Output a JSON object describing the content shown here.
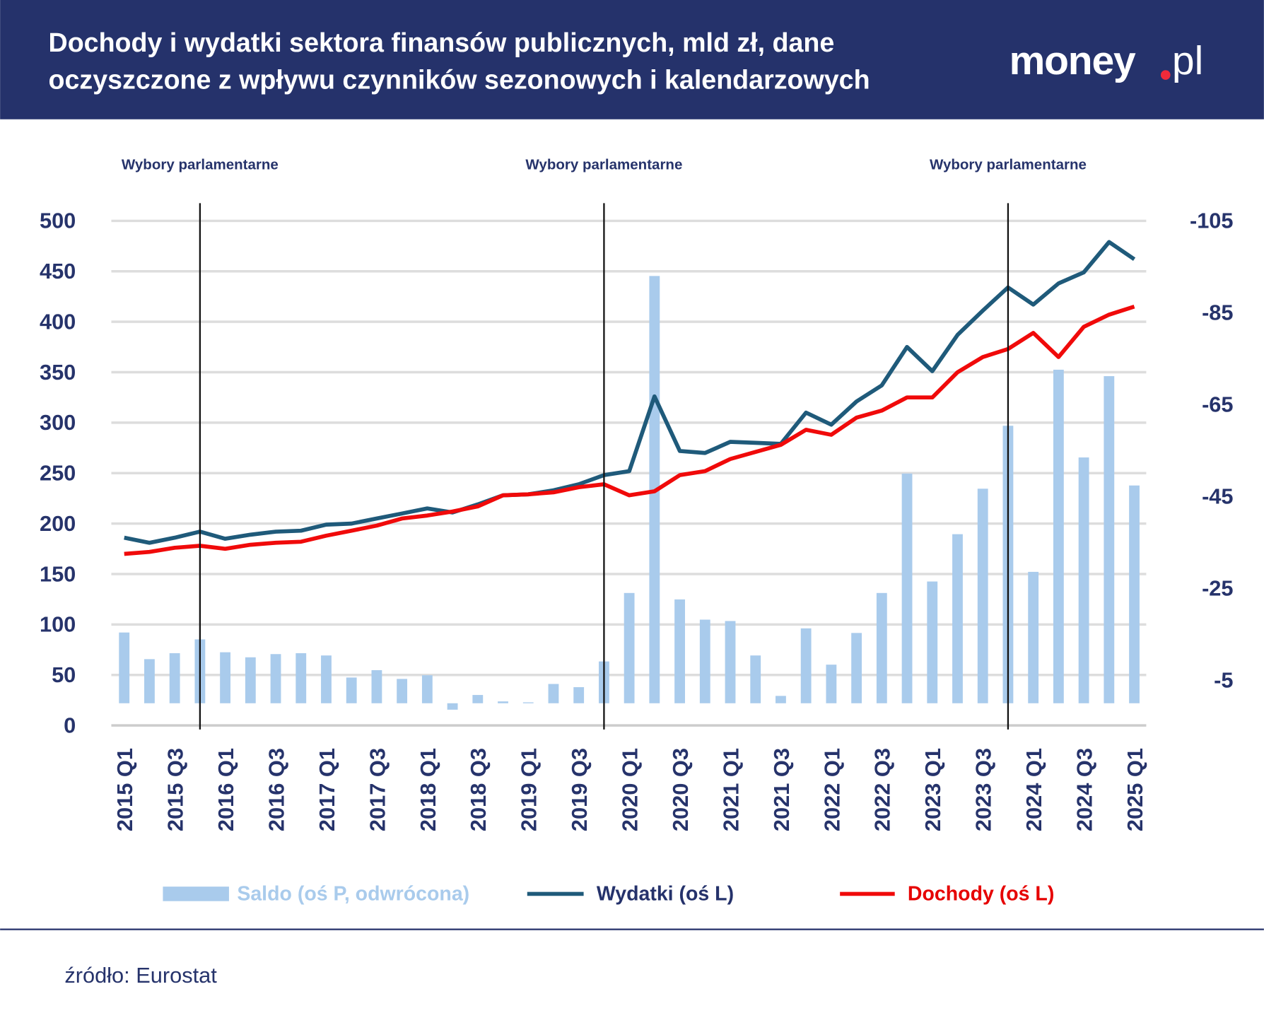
{
  "header": {
    "title_line1": "Dochody i wydatki sektora finansów publicznych, mld zł, dane",
    "title_line2": "oczyszczone z wpływu czynników sezonowych i kalendarzowych",
    "logo": "money.pl"
  },
  "colors": {
    "banner": "#25326b",
    "saldo": "#a9cbec",
    "wydatki": "#1f5a7a",
    "dochody": "#f00a0a",
    "text": "#26336b",
    "grid": "#dddddd"
  },
  "source": "źródło: Eurostat",
  "chart_data": {
    "type": "bar+line",
    "title": "Dochody i wydatki sektora finansów publicznych, mld zł, dane oczyszczone z wpływu czynników sezonowych i kalendarzowych",
    "categories": [
      "2015 Q1",
      "2015 Q2",
      "2015 Q3",
      "2015 Q4",
      "2016 Q1",
      "2016 Q2",
      "2016 Q3",
      "2016 Q4",
      "2017 Q1",
      "2017 Q2",
      "2017 Q3",
      "2017 Q4",
      "2018 Q1",
      "2018 Q2",
      "2018 Q3",
      "2018 Q4",
      "2019 Q1",
      "2019 Q2",
      "2019 Q3",
      "2019 Q4",
      "2020 Q1",
      "2020 Q2",
      "2020 Q3",
      "2020 Q4",
      "2021 Q1",
      "2021 Q2",
      "2021 Q3",
      "2021 Q4",
      "2022 Q1",
      "2022 Q2",
      "2022 Q3",
      "2022 Q4",
      "2023 Q1",
      "2023 Q2",
      "2023 Q3",
      "2023 Q4",
      "2024 Q1",
      "2024 Q2",
      "2024 Q3",
      "2024 Q4",
      "2025 Q1"
    ],
    "x_tick_labels": [
      "2015 Q1",
      "2015 Q3",
      "2016 Q1",
      "2016 Q3",
      "2017 Q1",
      "2017 Q3",
      "2018 Q1",
      "2018 Q3",
      "2019 Q1",
      "2019 Q3",
      "2020 Q1",
      "2020 Q3",
      "2021 Q1",
      "2021 Q3",
      "2022 Q1",
      "2022 Q3",
      "2023 Q1",
      "2023 Q3",
      "2024 Q1",
      "2024 Q3",
      "2025 Q1"
    ],
    "left_axis": {
      "ylim": [
        0,
        500
      ],
      "ticks": [
        "0",
        "50",
        "100",
        "150",
        "200",
        "250",
        "300",
        "350",
        "400",
        "450",
        "500"
      ]
    },
    "right_axis": {
      "ylim": [
        5,
        -105
      ],
      "inverted": true,
      "ticks": [
        "-5",
        "-25",
        "-45",
        "-65",
        "-85",
        "-105"
      ],
      "tick_values": [
        -5,
        -25,
        -45,
        -65,
        -85,
        -105
      ]
    },
    "series": [
      {
        "name": "Saldo (oś P, odwrócona)",
        "type": "bar",
        "axis": "right",
        "values": [
          -15.4,
          -9.6,
          -10.9,
          -13.9,
          -11.1,
          -10,
          -10.7,
          -10.9,
          -10.4,
          -5.6,
          -7.2,
          -5.3,
          -6.1,
          1.4,
          -1.8,
          -0.4,
          -0.2,
          -4.2,
          -3.5,
          -9.1,
          -24,
          -93,
          -22.6,
          -18.2,
          -17.9,
          -10.4,
          -1.6,
          -16.3,
          -8.4,
          -15.3,
          -24,
          -50,
          -26.5,
          -36.8,
          -46.7,
          -60.4,
          -28.6,
          -72.6,
          -53.5,
          -71.2,
          -47.4
        ]
      },
      {
        "name": "Wydatki (oś L)",
        "type": "line",
        "axis": "left",
        "values": [
          186,
          181,
          186,
          192,
          185,
          189,
          192,
          193,
          199,
          200,
          205,
          210,
          215,
          211,
          219,
          228,
          229,
          233,
          239,
          248,
          252,
          326,
          272,
          270,
          281,
          280,
          279,
          310,
          298,
          321,
          337,
          375,
          351,
          387,
          411,
          434,
          417,
          438,
          449,
          479,
          462
        ]
      },
      {
        "name": "Dochody (oś L)",
        "type": "line",
        "axis": "left",
        "values": [
          170,
          172,
          176,
          178,
          175,
          179,
          181,
          182,
          188,
          193,
          198,
          205,
          208,
          212,
          217,
          228,
          229,
          231,
          236,
          239,
          228,
          232,
          248,
          252,
          264,
          271,
          278,
          293,
          288,
          305,
          312,
          325,
          325,
          350,
          365,
          373,
          389,
          365,
          395,
          407,
          415
        ]
      }
    ],
    "annotations": [
      {
        "text": "Wybory parlamentarne",
        "at": "2015 Q4"
      },
      {
        "text": "Wybory parlamentarne",
        "at": "2019 Q4"
      },
      {
        "text": "Wybory parlamentarne",
        "at": "2023 Q4"
      }
    ],
    "legend_position": "bottom"
  }
}
